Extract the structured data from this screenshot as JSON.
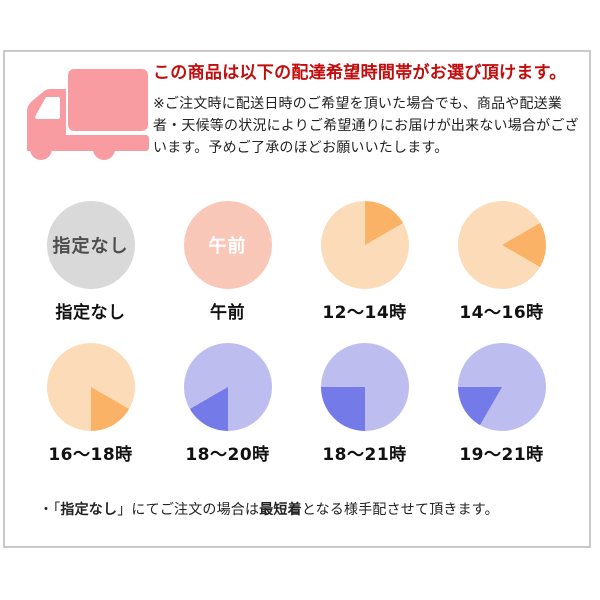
{
  "header": {
    "title": "この商品は以下の配達希望時間帯がお選び頂けます。",
    "disclaimer": "※ご注文時に配送日時のご希望を頂いた場合でも、商品や配送業者・天候等の状況によりご希望通りにお届けが出来ない場合がございます。予めご了承のほどお願いいたします。"
  },
  "icons": {
    "truck": "delivery-truck-icon"
  },
  "slots": [
    {
      "label": "指定なし",
      "inner_text": "指定なし",
      "base_color": "#d9d9d9",
      "inner_text_color": "#4d4d4d"
    },
    {
      "label": "午前",
      "inner_text": "午前",
      "base_color": "#f9c7b7",
      "inner_text_color": "#ffffff"
    },
    {
      "label": "12〜14時",
      "base_color": "#fcdcb8",
      "wedge": {
        "color": "#fab366",
        "start": 0,
        "end": 60
      }
    },
    {
      "label": "14〜16時",
      "base_color": "#fcdcb8",
      "wedge": {
        "color": "#fab366",
        "start": 60,
        "end": 120
      }
    },
    {
      "label": "16〜18時",
      "base_color": "#fcdcb8",
      "wedge": {
        "color": "#fab366",
        "start": 120,
        "end": 180
      }
    },
    {
      "label": "18〜20時",
      "base_color": "#bdbeef",
      "wedge": {
        "color": "#747ae8",
        "start": 180,
        "end": 240
      }
    },
    {
      "label": "18〜21時",
      "base_color": "#bdbeef",
      "wedge": {
        "color": "#747ae8",
        "start": 180,
        "end": 270
      }
    },
    {
      "label": "19〜21時",
      "base_color": "#bdbeef",
      "wedge": {
        "color": "#747ae8",
        "start": 210,
        "end": 270
      }
    }
  ],
  "note": {
    "segments": [
      {
        "text": "・「",
        "bold": false
      },
      {
        "text": "指定なし",
        "bold": true
      },
      {
        "text": "」にてご注文の場合は",
        "bold": false
      },
      {
        "text": "最短着",
        "bold": true
      },
      {
        "text": "となる様手配させて頂きます。",
        "bold": false
      }
    ]
  },
  "colors": {
    "truck_pink": "#f99ca1",
    "title_red": "#c30d0d",
    "border_gray": "#c9c9c9",
    "text_dark": "#222222",
    "label_dark": "#111111"
  }
}
